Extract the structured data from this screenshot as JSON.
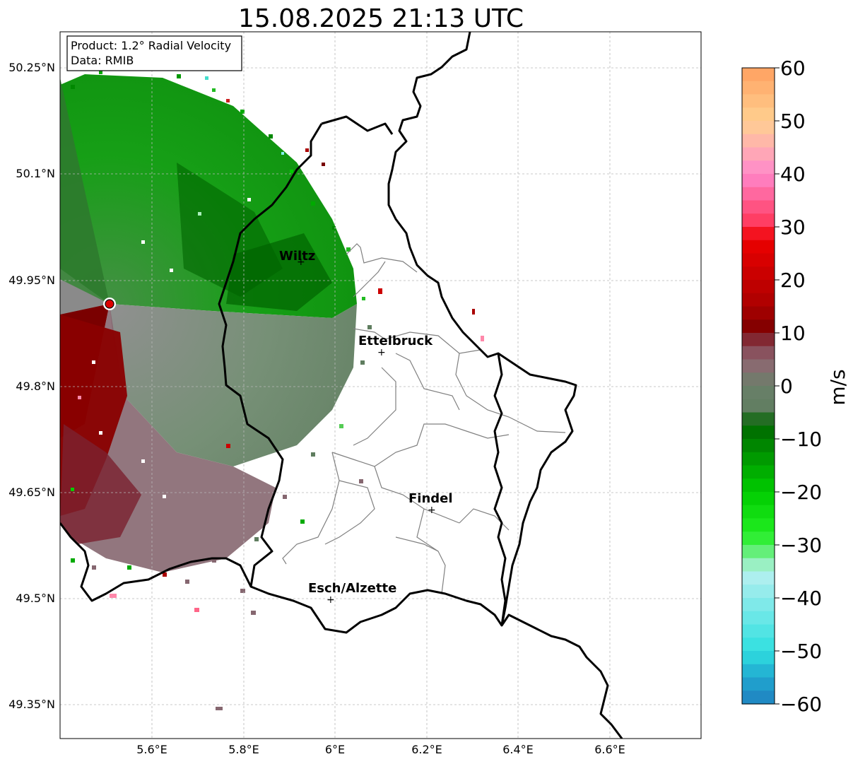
{
  "title": "15.08.2025 21:13 UTC",
  "info": {
    "product": "Product: 1.2° Radial Velocity",
    "data": "Data: RMIB"
  },
  "map": {
    "lon_range": [
      5.4,
      6.8
    ],
    "lat_range": [
      49.3,
      50.3
    ],
    "lon_ticks": [
      "5.6°E",
      "5.8°E",
      "6°E",
      "6.2°E",
      "6.4°E",
      "6.6°E"
    ],
    "lat_ticks": [
      "50.25°N",
      "50.1°N",
      "49.95°N",
      "49.8°N",
      "49.65°N",
      "49.5°N",
      "49.35°N"
    ],
    "grid": true
  },
  "cities": [
    {
      "name": "Wiltz"
    },
    {
      "name": "Ettelbruck"
    },
    {
      "name": "Findel"
    },
    {
      "name": "Esch/Alzette"
    }
  ],
  "colorbar": {
    "label": "m/s",
    "range": [
      -60,
      60
    ],
    "ticks": [
      "60",
      "50",
      "40",
      "30",
      "20",
      "10",
      "0",
      "−10",
      "−20",
      "−30",
      "−40",
      "−50",
      "−60"
    ],
    "colors": {
      "orange": "#ffa060",
      "pink": "#ff88cc",
      "red": "#ee0000",
      "dark_red": "#780000",
      "mauve": "#8a6a70",
      "grey_green": "#5f7d5f",
      "dark_green": "#006400",
      "green": "#00cc00",
      "cyan": "#30e0e0",
      "blue": "#2080c0"
    }
  }
}
